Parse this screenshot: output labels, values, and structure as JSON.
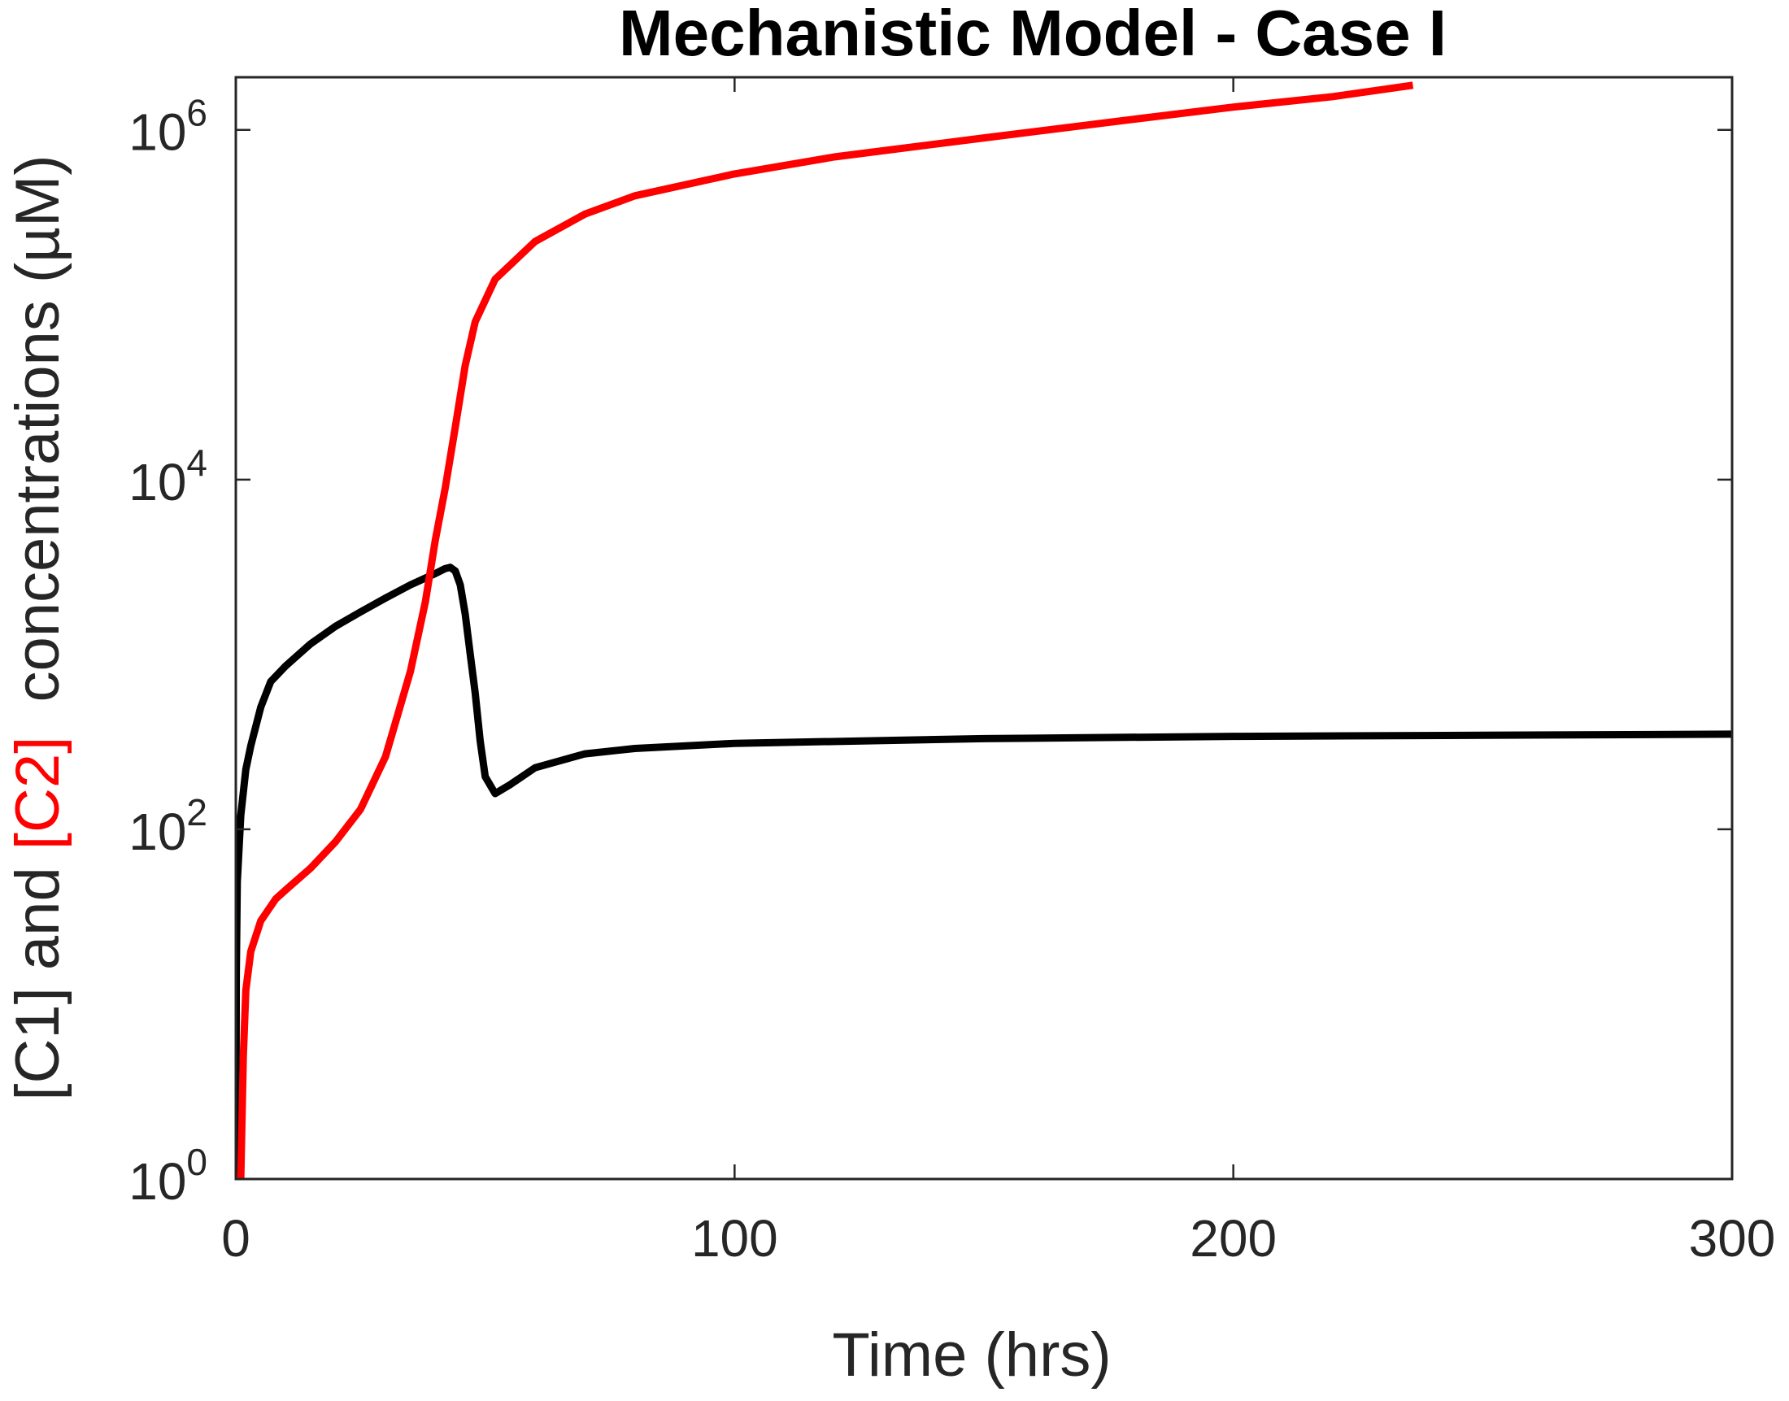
{
  "chart_data": {
    "type": "line",
    "title": "Mechanistic Model - Case I",
    "xlabel": "Time (hrs)",
    "ylabel": {
      "parts": [
        {
          "text": "[C1]",
          "color": "#262626"
        },
        {
          "text": " and ",
          "color": "#262626"
        },
        {
          "text": "[C2]",
          "color": "#ff0000"
        },
        {
          "text": "  concentrations (µM)",
          "color": "#262626"
        }
      ]
    },
    "xlim": [
      0,
      300
    ],
    "ylim": [
      1,
      2000000
    ],
    "yscale": "log",
    "grid": false,
    "legend": "none",
    "xticks": [
      {
        "value": 0,
        "label": "0"
      },
      {
        "value": 100,
        "label": "100"
      },
      {
        "value": 200,
        "label": "200"
      },
      {
        "value": 300,
        "label": "300"
      }
    ],
    "yticks": [
      {
        "value": 1,
        "base": "10",
        "exp": "0"
      },
      {
        "value": 100,
        "base": "10",
        "exp": "2"
      },
      {
        "value": 10000,
        "base": "10",
        "exp": "4"
      },
      {
        "value": 1000000,
        "base": "10",
        "exp": "6"
      }
    ],
    "series": [
      {
        "color": "#000000",
        "points": [
          [
            0,
            1
          ],
          [
            0.1,
            15
          ],
          [
            0.3,
            50
          ],
          [
            1,
            120
          ],
          [
            2,
            220
          ],
          [
            3,
            300
          ],
          [
            5,
            500
          ],
          [
            7,
            700
          ],
          [
            10,
            860
          ],
          [
            15,
            1150
          ],
          [
            20,
            1450
          ],
          [
            25,
            1750
          ],
          [
            30,
            2100
          ],
          [
            35,
            2500
          ],
          [
            40,
            2900
          ],
          [
            42,
            3100
          ],
          [
            43,
            3150
          ],
          [
            44,
            3000
          ],
          [
            45,
            2500
          ],
          [
            46,
            1700
          ],
          [
            47,
            1000
          ],
          [
            48,
            600
          ],
          [
            49,
            320
          ],
          [
            50,
            200
          ],
          [
            52,
            160
          ],
          [
            55,
            180
          ],
          [
            60,
            225
          ],
          [
            70,
            270
          ],
          [
            80,
            290
          ],
          [
            100,
            310
          ],
          [
            150,
            330
          ],
          [
            200,
            340
          ],
          [
            250,
            345
          ],
          [
            300,
            350
          ]
        ]
      },
      {
        "color": "#ff0000",
        "points": [
          [
            1,
            1
          ],
          [
            1.5,
            5
          ],
          [
            2,
            12
          ],
          [
            3,
            20
          ],
          [
            5,
            30
          ],
          [
            8,
            40
          ],
          [
            10,
            45
          ],
          [
            15,
            60
          ],
          [
            20,
            85
          ],
          [
            25,
            130
          ],
          [
            30,
            260
          ],
          [
            35,
            800
          ],
          [
            38,
            2000
          ],
          [
            40,
            4500
          ],
          [
            42,
            9000
          ],
          [
            44,
            20000
          ],
          [
            46,
            45000
          ],
          [
            48,
            80000
          ],
          [
            52,
            140000
          ],
          [
            60,
            230000
          ],
          [
            70,
            330000
          ],
          [
            80,
            420000
          ],
          [
            100,
            560000
          ],
          [
            120,
            700000
          ],
          [
            150,
            900000
          ],
          [
            180,
            1150000
          ],
          [
            200,
            1350000
          ],
          [
            220,
            1550000
          ],
          [
            236,
            1800000
          ]
        ]
      }
    ]
  }
}
